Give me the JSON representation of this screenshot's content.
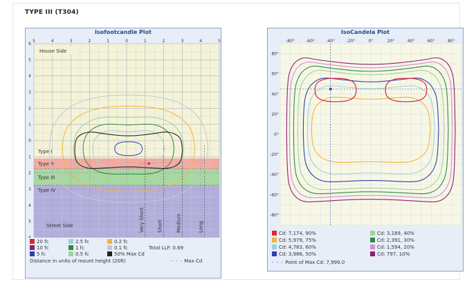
{
  "heading": "TYPE III (T304)",
  "iso_fc": {
    "title": "Isofootcandle Plot",
    "top_ticks": [
      "5",
      "4",
      "3",
      "2",
      "1",
      "0",
      "1",
      "2",
      "3",
      "4",
      "5"
    ],
    "left_ticks": [
      "6",
      "5",
      "4",
      "3",
      "2",
      "1",
      "0",
      "1",
      "2",
      "3",
      "4",
      "5",
      "6"
    ],
    "house_side": "House Side",
    "street_side": "Street Side",
    "zones": [
      {
        "label": "Type I",
        "color": "#f4f3d8"
      },
      {
        "label": "Type II",
        "color": "#f3a9a0"
      },
      {
        "label": "Type III",
        "color": "#a7d8a0"
      },
      {
        "label": "Type IV",
        "color": "#b3aedc"
      }
    ],
    "verticals": [
      "Very Short",
      "Short",
      "Medium",
      "Long"
    ],
    "legend": [
      {
        "label": "20 fc",
        "color": "#d7263d"
      },
      {
        "label": "2.5 fc",
        "color": "#9ad3d9"
      },
      {
        "label": "0.2 fc",
        "color": "#f6b13d"
      },
      {
        "label": "10 fc",
        "color": "#8e1f6e"
      },
      {
        "label": "1 fc",
        "color": "#2e8b3e"
      },
      {
        "label": "0.1 fc",
        "color": "#c7c7c7"
      },
      {
        "label": "5 fc",
        "color": "#2d3fb0"
      },
      {
        "label": "0.5 fc",
        "color": "#9fd49a"
      },
      {
        "label": "50% Max Cd",
        "color": "#222222"
      }
    ],
    "total_llf": "Total LLF: 0.69",
    "distance_note": "Distance in units of mount height (20ft)",
    "max_cd": "Max Cd"
  },
  "chart_data": [
    {
      "type": "contour",
      "title": "Isofootcandle Plot",
      "x_range": [
        -5,
        5
      ],
      "y_range": [
        -6,
        6
      ],
      "levels_fc": [
        20,
        10,
        5,
        2.5,
        1,
        0.5,
        0.2,
        0.1
      ],
      "extra_contour": "50% Max Cd",
      "total_llf": 0.69
    },
    {
      "type": "contour",
      "title": "IsoCandela Plot",
      "x_ticks": [
        "-80°",
        "-60°",
        "-40°",
        "-20°",
        "0°",
        "20°",
        "40°",
        "60°",
        "80°"
      ],
      "y_ticks": [
        "80°",
        "60°",
        "40°",
        "20°",
        "0°",
        "-20°",
        "-40°",
        "-60°",
        "-80°"
      ],
      "levels": [
        {
          "cd": "7,174",
          "pct": "90%"
        },
        {
          "cd": "5,979",
          "pct": "75%"
        },
        {
          "cd": "4,783",
          "pct": "60%"
        },
        {
          "cd": "3,986",
          "pct": "50%"
        },
        {
          "cd": "3,189",
          "pct": "40%"
        },
        {
          "cd": "2,391",
          "pct": "30%"
        },
        {
          "cd": "1,594",
          "pct": "20%"
        },
        {
          "cd": "797",
          "pct": "10%"
        }
      ],
      "max_cd": "7,999.0"
    }
  ],
  "iso_cd": {
    "title": "IsoCandela Plot",
    "x_ticks": [
      "-80°",
      "-60°",
      "-40°",
      "-20°",
      "0°",
      "20°",
      "40°",
      "60°",
      "80°"
    ],
    "y_ticks": [
      "80°",
      "60°",
      "40°",
      "20°",
      "0°",
      "-20°",
      "-40°",
      "-60°",
      "-80°"
    ],
    "legend": [
      {
        "label": "Cd: 7,174, 90%",
        "color": "#d7263d"
      },
      {
        "label": "Cd: 3,189, 40%",
        "color": "#9fd49a"
      },
      {
        "label": "Cd: 5,979, 75%",
        "color": "#f6b13d"
      },
      {
        "label": "Cd: 2,391, 30%",
        "color": "#2e8b3e"
      },
      {
        "label": "Cd: 4,783, 60%",
        "color": "#9ad3d9"
      },
      {
        "label": "Cd: 1,594, 20%",
        "color": "#d88bd8"
      },
      {
        "label": "Cd: 3,986, 50%",
        "color": "#2d3fb0"
      },
      {
        "label": "Cd: 797, 10%",
        "color": "#8e1f6e"
      }
    ],
    "max_point": "Point of Max Cd: 7,999.0"
  }
}
